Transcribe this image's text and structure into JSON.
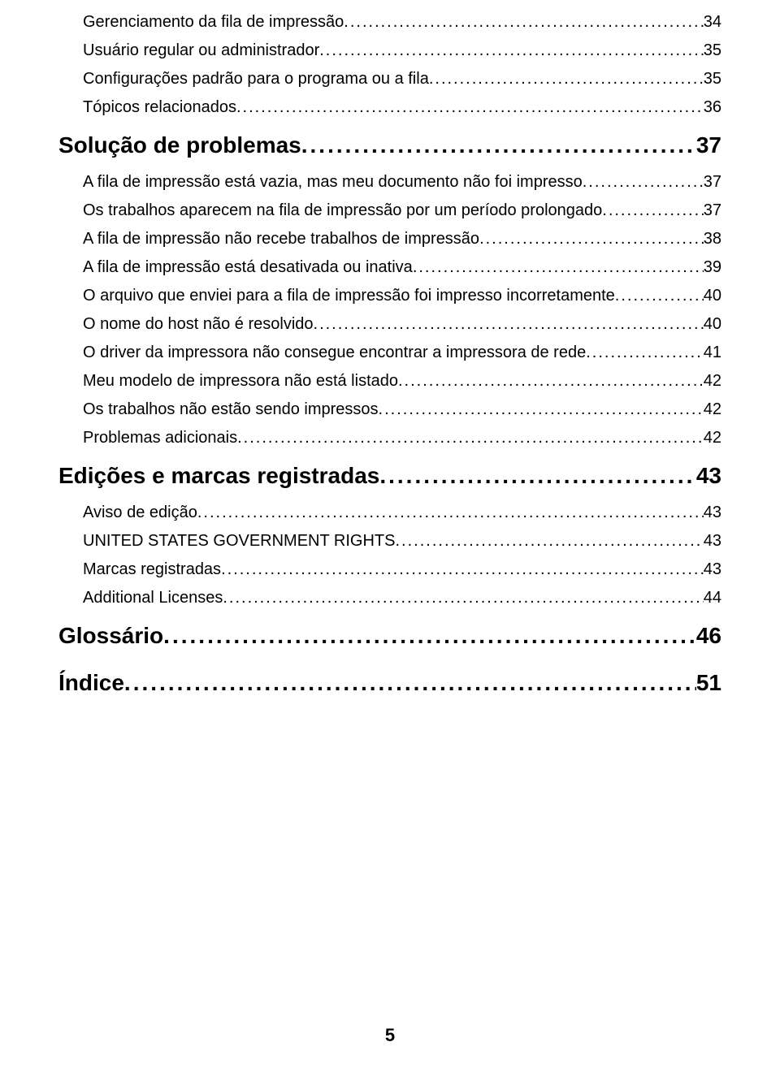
{
  "page_number": "5",
  "toc": [
    {
      "level": 2,
      "label": "Gerenciamento da fila de impressão",
      "page": "34"
    },
    {
      "level": 2,
      "label": "Usuário regular ou administrador",
      "page": "35"
    },
    {
      "level": 2,
      "label": "Configurações padrão para o programa ou a fila",
      "page": "35"
    },
    {
      "level": 2,
      "label": "Tópicos relacionados",
      "page": "36"
    },
    {
      "level": 1,
      "label": "Solução de problemas",
      "page": "37"
    },
    {
      "level": 2,
      "label": "A fila de impressão está vazia, mas meu documento não foi impresso",
      "page": "37"
    },
    {
      "level": 2,
      "label": "Os trabalhos aparecem na fila de impressão por um período prolongado",
      "page": "37"
    },
    {
      "level": 2,
      "label": "A fila de impressão não recebe trabalhos de impressão",
      "page": "38"
    },
    {
      "level": 2,
      "label": "A fila de impressão está desativada ou inativa",
      "page": "39"
    },
    {
      "level": 2,
      "label": "O arquivo que enviei para a fila de impressão foi impresso incorretamente",
      "page": "40"
    },
    {
      "level": 2,
      "label": "O nome do host não é resolvido",
      "page": "40"
    },
    {
      "level": 2,
      "label": "O driver da impressora não consegue encontrar a impressora de rede",
      "page": "41"
    },
    {
      "level": 2,
      "label": "Meu modelo de impressora não está listado",
      "page": "42"
    },
    {
      "level": 2,
      "label": "Os trabalhos não estão sendo impressos",
      "page": "42"
    },
    {
      "level": 2,
      "label": "Problemas adicionais",
      "page": "42"
    },
    {
      "level": 1,
      "label": "Edições e marcas registradas",
      "page": "43"
    },
    {
      "level": 2,
      "label": "Aviso de edição",
      "page": "43"
    },
    {
      "level": 2,
      "label": "UNITED STATES GOVERNMENT RIGHTS",
      "page": "43"
    },
    {
      "level": 2,
      "label": "Marcas registradas",
      "page": "43"
    },
    {
      "level": 2,
      "label": "Additional Licenses",
      "page": "44"
    },
    {
      "level": 1,
      "label": "Glossário",
      "page": "46"
    },
    {
      "level": 1,
      "label": "Índice",
      "page": "51"
    }
  ]
}
